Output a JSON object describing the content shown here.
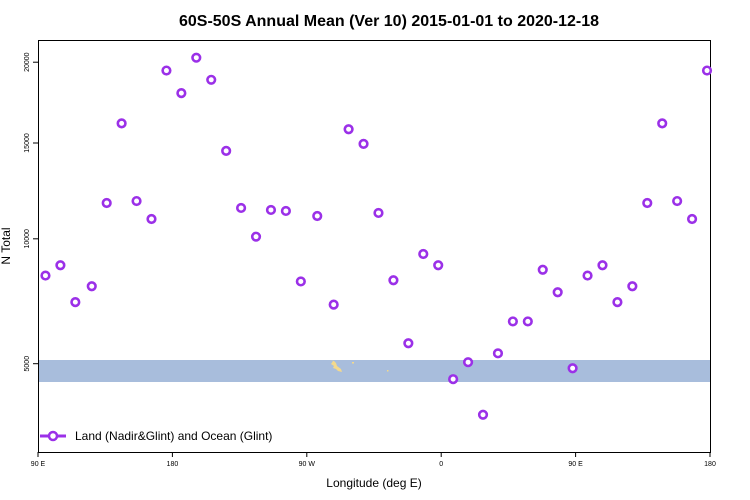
{
  "chart_data": {
    "type": "scatter",
    "title": "60S-50S Annual Mean (Ver 10)   2015-01-01 to 2020-12-18",
    "xlabel": "Longitude (deg E)",
    "ylabel": "N Total",
    "x_ticks": [
      {
        "value": 90,
        "label": "90 E"
      },
      {
        "value": 180,
        "label": "180"
      },
      {
        "value": 270,
        "label": "90 W"
      },
      {
        "value": 360,
        "label": "0"
      },
      {
        "value": 450,
        "label": "90 E"
      },
      {
        "value": 540,
        "label": "180"
      }
    ],
    "y_ticks": [
      5000,
      10000,
      15000,
      20000
    ],
    "xlim": [
      90,
      540
    ],
    "ylim": [
      2500,
      21500
    ],
    "y_scale": "sqrt",
    "grid": false,
    "legend_position": "bottom-left",
    "colors": {
      "marker": "#9b30e8",
      "ocean_band": "#a8bddc",
      "land": "#f4d98c"
    },
    "series": [
      {
        "name": "Land (Nadir&Glint) and Ocean (Glint)",
        "x": [
          95,
          105,
          115,
          126,
          136,
          146,
          156,
          166,
          176,
          186,
          196,
          206,
          216,
          226,
          236,
          246,
          256,
          266,
          277,
          288,
          298,
          308,
          318,
          328,
          338,
          348,
          358,
          368,
          378,
          388,
          398,
          408,
          418,
          428,
          438,
          448,
          458,
          468,
          478,
          488,
          498,
          508,
          518,
          528,
          538
        ],
        "y": [
          8350,
          8800,
          7250,
          7900,
          11750,
          16150,
          11850,
          10950,
          19450,
          18000,
          20300,
          18850,
          14550,
          11500,
          10100,
          11400,
          11350,
          8100,
          11100,
          7150,
          15800,
          14950,
          11250,
          8150,
          5700,
          9300,
          8800,
          4500,
          5050,
          3450,
          5350,
          6500,
          6500,
          8600,
          7650,
          4850,
          8350,
          8800,
          7250,
          7900,
          11750,
          16150,
          11850,
          10950,
          19450
        ]
      }
    ]
  }
}
